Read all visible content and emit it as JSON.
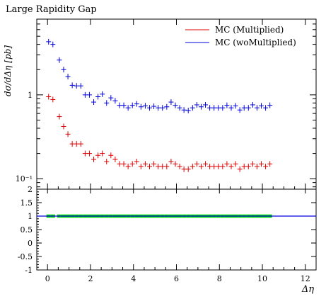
{
  "chart_data": {
    "type": "scatter",
    "title": "Large Rapidity Gap",
    "ylabel": "dσ/dΔη [pb]",
    "xlabel": "Δη",
    "xlim": [
      -0.5,
      12.5
    ],
    "ylim": [
      0.075,
      8
    ],
    "yscale": "log",
    "grid": false,
    "legend": {
      "position": "top-right"
    },
    "x_ticks": [
      0,
      2,
      4,
      6,
      8,
      10,
      12
    ],
    "y_ticks": [
      {
        "value": 1,
        "label": "1"
      },
      {
        "value": 0.1,
        "label": "10⁻¹"
      }
    ],
    "x": [
      0.05,
      0.25,
      0.55,
      0.75,
      0.95,
      1.15,
      1.35,
      1.55,
      1.75,
      1.95,
      2.15,
      2.35,
      2.55,
      2.75,
      2.95,
      3.15,
      3.35,
      3.55,
      3.75,
      3.95,
      4.15,
      4.35,
      4.55,
      4.75,
      4.95,
      5.15,
      5.35,
      5.55,
      5.75,
      5.95,
      6.15,
      6.35,
      6.55,
      6.75,
      6.95,
      7.15,
      7.35,
      7.55,
      7.75,
      7.95,
      8.15,
      8.35,
      8.55,
      8.75,
      8.95,
      9.15,
      9.35,
      9.55,
      9.75,
      9.95,
      10.15,
      10.35
    ],
    "series": [
      {
        "name": "MC (Multiplied)",
        "color": "#dd0000",
        "values": [
          0.95,
          0.88,
          0.55,
          0.42,
          0.34,
          0.26,
          0.26,
          0.26,
          0.2,
          0.2,
          0.17,
          0.19,
          0.2,
          0.16,
          0.19,
          0.17,
          0.15,
          0.15,
          0.14,
          0.15,
          0.16,
          0.14,
          0.15,
          0.14,
          0.15,
          0.14,
          0.14,
          0.14,
          0.16,
          0.15,
          0.14,
          0.13,
          0.13,
          0.14,
          0.15,
          0.14,
          0.15,
          0.14,
          0.14,
          0.14,
          0.14,
          0.15,
          0.14,
          0.15,
          0.13,
          0.14,
          0.14,
          0.15,
          0.14,
          0.15,
          0.14,
          0.15
        ]
      },
      {
        "name": "MC (woMultiplied)",
        "color": "#0000dd",
        "values": [
          4.3,
          4.0,
          2.6,
          2.0,
          1.65,
          1.3,
          1.28,
          1.28,
          1.0,
          1.0,
          0.82,
          0.95,
          1.02,
          0.8,
          0.92,
          0.85,
          0.75,
          0.75,
          0.7,
          0.75,
          0.78,
          0.72,
          0.74,
          0.7,
          0.73,
          0.7,
          0.7,
          0.72,
          0.82,
          0.75,
          0.7,
          0.66,
          0.65,
          0.7,
          0.76,
          0.72,
          0.76,
          0.7,
          0.7,
          0.7,
          0.7,
          0.75,
          0.7,
          0.74,
          0.66,
          0.7,
          0.7,
          0.76,
          0.7,
          0.74,
          0.7,
          0.75
        ]
      }
    ],
    "ratio_panel": {
      "ylim": [
        -1,
        2
      ],
      "y_ticks": [
        -1,
        -0.5,
        0,
        0.5,
        1,
        1.5,
        2
      ],
      "reference_value": 1,
      "reference_color": "#0000dd",
      "band_color": "#00dd00"
    }
  }
}
